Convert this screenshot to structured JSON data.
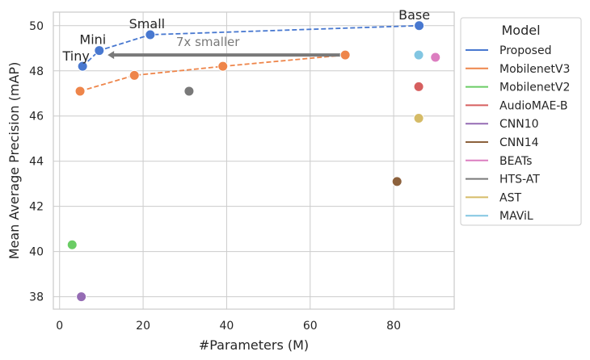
{
  "chart_data": {
    "type": "scatter",
    "xlabel": "#Parameters (M)",
    "ylabel": "Mean Average Precision (mAP)",
    "xlim": [
      -1.5,
      94.5
    ],
    "ylim": [
      37.45,
      50.6
    ],
    "xticks": [
      0,
      20,
      40,
      60,
      80
    ],
    "yticks": [
      38,
      40,
      42,
      44,
      46,
      48,
      50
    ],
    "grid": true,
    "legend": {
      "title": "Model",
      "placement": "outside-right"
    },
    "series": [
      {
        "name": "Proposed",
        "color": "#4878d0",
        "line": "dashed",
        "points": [
          [
            5.5,
            48.2
          ],
          [
            9.5,
            48.9
          ],
          [
            21.7,
            49.6
          ],
          [
            86.1,
            50.0
          ]
        ],
        "point_labels": [
          "Tiny",
          "Mini",
          "Small",
          "Base"
        ]
      },
      {
        "name": "MobilenetV3",
        "color": "#ee854a",
        "line": "dashed",
        "points": [
          [
            4.9,
            47.1
          ],
          [
            17.9,
            47.8
          ],
          [
            39.1,
            48.2
          ],
          [
            68.4,
            48.7
          ]
        ]
      },
      {
        "name": "MobilenetV2",
        "color": "#6acc64",
        "line": "none",
        "points": [
          [
            3.0,
            40.3
          ]
        ]
      },
      {
        "name": "AudioMAE-B",
        "color": "#d65f5f",
        "line": "none",
        "points": [
          [
            86.0,
            47.3
          ]
        ]
      },
      {
        "name": "CNN10",
        "color": "#956cb4",
        "line": "none",
        "points": [
          [
            5.2,
            38.0
          ]
        ]
      },
      {
        "name": "CNN14",
        "color": "#8c613c",
        "line": "none",
        "points": [
          [
            80.8,
            43.1
          ]
        ]
      },
      {
        "name": "BEATs",
        "color": "#dc7ec0",
        "line": "none",
        "points": [
          [
            90.0,
            48.6
          ]
        ]
      },
      {
        "name": "HTS-AT",
        "color": "#797979",
        "line": "none",
        "points": [
          [
            31.0,
            47.1
          ]
        ]
      },
      {
        "name": "AST",
        "color": "#d5bb67",
        "line": "none",
        "points": [
          [
            86.0,
            45.9
          ]
        ]
      },
      {
        "name": "MAViL",
        "color": "#82c6e2",
        "line": "none",
        "points": [
          [
            86.0,
            48.7
          ]
        ]
      }
    ],
    "annotations": [
      {
        "text": "7x smaller",
        "color": "#797979",
        "arrow_from": [
          67.5,
          48.7
        ],
        "arrow_to": [
          11.5,
          48.7
        ],
        "text_at": [
          35.5,
          49.1
        ]
      }
    ]
  }
}
